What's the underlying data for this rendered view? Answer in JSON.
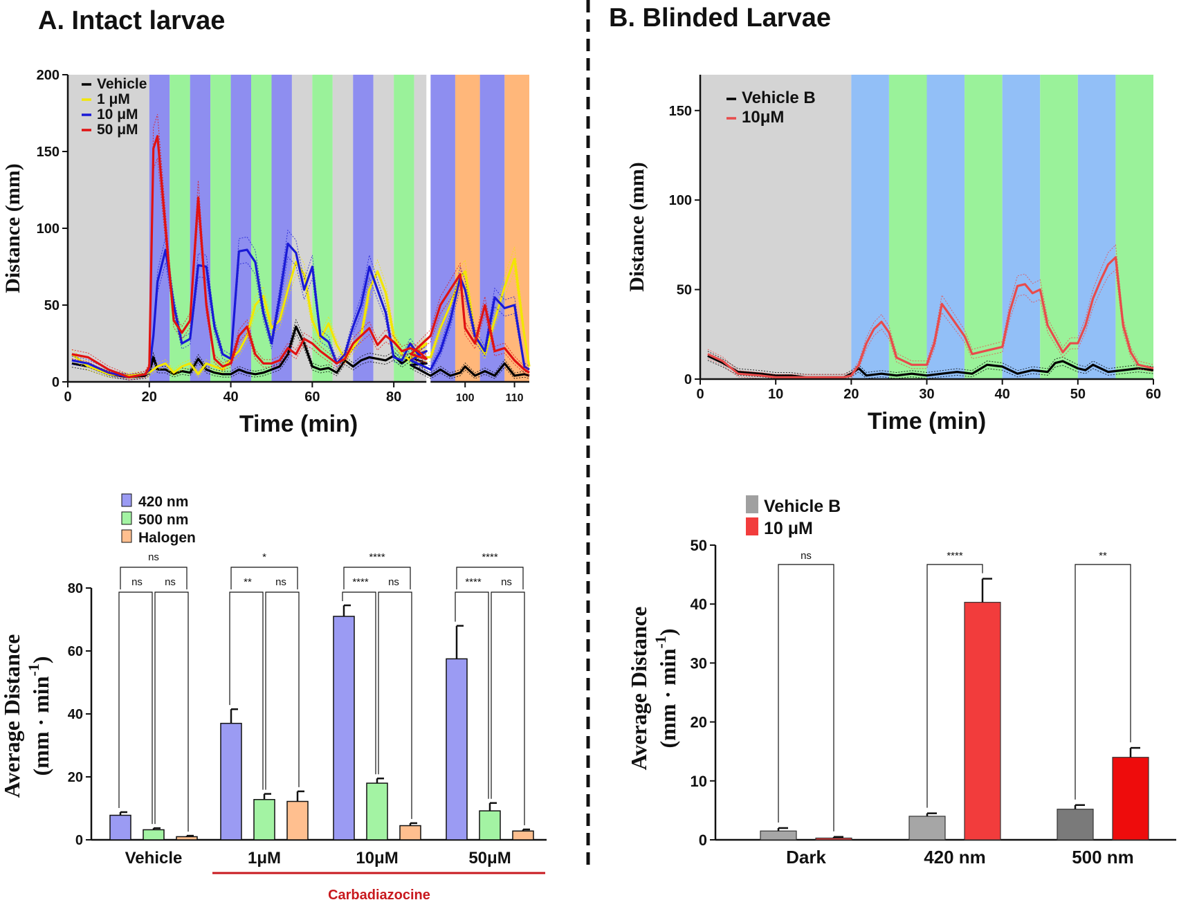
{
  "panel_a_title": "A. Intact larvae",
  "panel_b_title": "B. Blinded Larvae",
  "chart_data": [
    {
      "id": "a-top",
      "type": "line",
      "xlabel": "Time (min)",
      "ylabel": "Distance (mm)",
      "ylim": [
        0,
        200
      ],
      "xlim": [
        0,
        113
      ],
      "x_axis_break_at": 88,
      "y_ticks": [
        0,
        50,
        100,
        150,
        200
      ],
      "x_ticks": [
        0,
        20,
        40,
        60,
        80,
        100,
        110
      ],
      "legend_position": "top-left",
      "bands": [
        {
          "from": 0,
          "to": 20,
          "color": "#d4d4d4"
        },
        {
          "from": 20,
          "to": 25,
          "color": "#8e8ef0"
        },
        {
          "from": 25,
          "to": 30,
          "color": "#9af29a"
        },
        {
          "from": 30,
          "to": 35,
          "color": "#8e8ef0"
        },
        {
          "from": 35,
          "to": 40,
          "color": "#9af29a"
        },
        {
          "from": 40,
          "to": 45,
          "color": "#8e8ef0"
        },
        {
          "from": 45,
          "to": 50,
          "color": "#9af29a"
        },
        {
          "from": 50,
          "to": 55,
          "color": "#8e8ef0"
        },
        {
          "from": 55,
          "to": 60,
          "color": "#d4d4d4"
        },
        {
          "from": 60,
          "to": 65,
          "color": "#9af29a"
        },
        {
          "from": 65,
          "to": 70,
          "color": "#d4d4d4"
        },
        {
          "from": 70,
          "to": 75,
          "color": "#8e8ef0"
        },
        {
          "from": 75,
          "to": 80,
          "color": "#d4d4d4"
        },
        {
          "from": 80,
          "to": 85,
          "color": "#9af29a"
        },
        {
          "from": 85,
          "to": 93,
          "color": "#d4d4d4"
        },
        {
          "from": 93,
          "to": 98,
          "color": "#8e8ef0"
        },
        {
          "from": 98,
          "to": 103,
          "color": "#ffb77a"
        },
        {
          "from": 103,
          "to": 108,
          "color": "#8e8ef0"
        },
        {
          "from": 108,
          "to": 113,
          "color": "#ffb77a"
        }
      ],
      "series": [
        {
          "name": "Vehicle",
          "color": "#000000",
          "x": [
            1,
            5,
            10,
            15,
            19,
            20,
            21,
            22,
            24,
            26,
            28,
            30,
            32,
            34,
            36,
            38,
            40,
            42,
            44,
            46,
            48,
            50,
            52,
            54,
            56,
            58,
            60,
            62,
            64,
            66,
            68,
            70,
            72,
            74,
            76,
            78,
            80,
            82,
            84,
            86,
            88,
            89,
            93,
            95,
            97,
            99,
            100,
            102,
            104,
            106,
            108,
            110,
            112,
            113
          ],
          "y": [
            12,
            10,
            5,
            3,
            4,
            6,
            16,
            8,
            8,
            5,
            7,
            6,
            15,
            8,
            6,
            5,
            5,
            8,
            6,
            5,
            6,
            8,
            10,
            18,
            36,
            25,
            10,
            8,
            9,
            6,
            14,
            10,
            14,
            16,
            15,
            14,
            17,
            12,
            16,
            14,
            12,
            11,
            4,
            8,
            4,
            6,
            10,
            4,
            7,
            4,
            12,
            4,
            5,
            4
          ]
        },
        {
          "name": "1 μM",
          "color": "#f2e600",
          "x": [
            1,
            5,
            10,
            15,
            19,
            20,
            21,
            22,
            24,
            26,
            28,
            30,
            32,
            34,
            36,
            38,
            40,
            42,
            44,
            46,
            48,
            50,
            52,
            54,
            56,
            58,
            60,
            62,
            64,
            66,
            68,
            70,
            72,
            74,
            76,
            78,
            80,
            82,
            84,
            86,
            88,
            89,
            93,
            95,
            97,
            99,
            100,
            102,
            104,
            106,
            108,
            110,
            112,
            113
          ],
          "y": [
            18,
            10,
            5,
            4,
            5,
            6,
            8,
            10,
            12,
            6,
            10,
            12,
            5,
            12,
            10,
            8,
            15,
            20,
            30,
            50,
            56,
            35,
            40,
            60,
            78,
            70,
            40,
            28,
            38,
            24,
            15,
            22,
            30,
            60,
            72,
            58,
            30,
            18,
            14,
            22,
            25,
            16,
            16,
            35,
            50,
            68,
            72,
            30,
            18,
            40,
            62,
            80,
            30,
            10
          ]
        },
        {
          "name": "10 μM",
          "color": "#1a1ad6",
          "x": [
            1,
            5,
            10,
            15,
            19,
            20,
            21,
            22,
            24,
            26,
            28,
            30,
            32,
            34,
            36,
            38,
            40,
            42,
            44,
            46,
            48,
            50,
            52,
            54,
            56,
            58,
            60,
            62,
            64,
            66,
            68,
            70,
            72,
            74,
            76,
            78,
            80,
            82,
            84,
            86,
            88,
            89,
            93,
            95,
            97,
            99,
            100,
            102,
            104,
            106,
            108,
            110,
            112,
            113
          ],
          "y": [
            14,
            12,
            6,
            3,
            5,
            8,
            30,
            65,
            86,
            50,
            25,
            28,
            76,
            75,
            36,
            18,
            15,
            85,
            86,
            78,
            45,
            25,
            55,
            90,
            84,
            60,
            75,
            30,
            26,
            12,
            18,
            36,
            50,
            75,
            60,
            45,
            16,
            14,
            25,
            18,
            20,
            14,
            8,
            20,
            40,
            68,
            60,
            30,
            20,
            55,
            48,
            50,
            10,
            8
          ]
        },
        {
          "name": "50 μM",
          "color": "#e01212",
          "x": [
            1,
            5,
            10,
            15,
            19,
            20,
            21,
            22,
            24,
            26,
            28,
            30,
            32,
            34,
            36,
            38,
            40,
            42,
            44,
            46,
            48,
            50,
            52,
            54,
            56,
            58,
            60,
            62,
            64,
            66,
            68,
            70,
            72,
            74,
            76,
            78,
            80,
            82,
            84,
            86,
            88,
            89,
            93,
            95,
            97,
            99,
            100,
            102,
            104,
            106,
            108,
            110,
            112,
            113
          ],
          "y": [
            18,
            16,
            8,
            3,
            5,
            10,
            152,
            160,
            100,
            40,
            32,
            40,
            120,
            50,
            15,
            10,
            12,
            30,
            36,
            18,
            12,
            12,
            14,
            22,
            18,
            28,
            25,
            20,
            16,
            12,
            15,
            25,
            30,
            35,
            24,
            30,
            26,
            20,
            22,
            20,
            15,
            18,
            30,
            50,
            60,
            70,
            35,
            25,
            50,
            20,
            22,
            14,
            8,
            6
          ]
        }
      ]
    },
    {
      "id": "a-bottom",
      "type": "bar",
      "ylabel": "Average Distance",
      "ylabel_unit": "(mm · min",
      "ylabel_sup": "-1",
      "ylabel_close": ")",
      "ylim": [
        0,
        80
      ],
      "y_ticks": [
        0,
        20,
        40,
        60,
        80
      ],
      "legend_position": "top-left",
      "series": [
        {
          "name": "420 nm",
          "color": "#9b9bf3"
        },
        {
          "name": "500 nm",
          "color": "#a3f3a3"
        },
        {
          "name": "Halogen",
          "color": "#ffbf8f"
        }
      ],
      "groups": [
        {
          "category": "Vehicle",
          "values": [
            7.8,
            3.2,
            1.0
          ],
          "errors": [
            1.0,
            0.5,
            0.3
          ],
          "sig_pair_12": "ns",
          "sig_pair_23": "ns",
          "sig_pair_13": "ns"
        },
        {
          "category": "1μM",
          "values": [
            37,
            12.8,
            12.2
          ],
          "errors": [
            4.5,
            1.8,
            3.2
          ],
          "sig_pair_12": "**",
          "sig_pair_23": "ns",
          "sig_pair_13": "*"
        },
        {
          "category": "10μM",
          "values": [
            71,
            18,
            4.5
          ],
          "errors": [
            3.5,
            1.5,
            0.8
          ],
          "sig_pair_12": "****",
          "sig_pair_23": "ns",
          "sig_pair_13": "****"
        },
        {
          "category": "50μM",
          "values": [
            57.5,
            9.2,
            2.8
          ],
          "errors": [
            10.5,
            2.5,
            0.5
          ],
          "sig_pair_12": "****",
          "sig_pair_23": "ns",
          "sig_pair_13": "****"
        }
      ],
      "group_label": "Carbadiazocine",
      "group_label_color": "#c8191e"
    },
    {
      "id": "b-top",
      "type": "line",
      "xlabel": "Time (min)",
      "ylabel": "Distance (mm)",
      "ylim": [
        0,
        170
      ],
      "xlim": [
        0,
        60
      ],
      "y_ticks": [
        0,
        50,
        100,
        150
      ],
      "x_ticks": [
        0,
        10,
        20,
        30,
        40,
        50,
        60
      ],
      "legend_position": "top-left",
      "bands": [
        {
          "from": 0,
          "to": 20,
          "color": "#d4d4d4"
        },
        {
          "from": 20,
          "to": 25,
          "color": "#92bff7"
        },
        {
          "from": 25,
          "to": 30,
          "color": "#9af29a"
        },
        {
          "from": 30,
          "to": 35,
          "color": "#92bff7"
        },
        {
          "from": 35,
          "to": 40,
          "color": "#9af29a"
        },
        {
          "from": 40,
          "to": 45,
          "color": "#92bff7"
        },
        {
          "from": 45,
          "to": 50,
          "color": "#9af29a"
        },
        {
          "from": 50,
          "to": 55,
          "color": "#92bff7"
        },
        {
          "from": 55,
          "to": 60,
          "color": "#9af29a"
        }
      ],
      "series": [
        {
          "name": "Vehicle B",
          "color": "#000000",
          "x": [
            1,
            3,
            5,
            8,
            10,
            12,
            14,
            16,
            18,
            19,
            20,
            21,
            22,
            24,
            26,
            28,
            30,
            32,
            34,
            36,
            38,
            40,
            42,
            44,
            46,
            47,
            48,
            50,
            51,
            52,
            54,
            56,
            58,
            60
          ],
          "y": [
            13,
            9,
            4,
            3,
            2,
            2,
            1,
            1,
            1,
            1,
            3,
            6,
            2,
            3,
            2,
            3,
            2,
            3,
            4,
            3,
            8,
            7,
            3,
            5,
            4,
            9,
            10,
            6,
            5,
            8,
            4,
            5,
            6,
            5
          ]
        },
        {
          "name": "10μM",
          "color": "#e84b4b",
          "x": [
            1,
            3,
            5,
            8,
            10,
            12,
            14,
            16,
            18,
            19,
            20,
            21,
            22,
            23,
            24,
            25,
            26,
            28,
            30,
            31,
            32,
            33,
            34,
            35,
            36,
            38,
            40,
            41,
            42,
            43,
            44,
            45,
            46,
            48,
            49,
            50,
            51,
            52,
            53,
            54,
            55,
            56,
            57,
            58,
            60
          ],
          "y": [
            14,
            10,
            3,
            2,
            1,
            1,
            1,
            1,
            1,
            1,
            2,
            8,
            20,
            28,
            32,
            26,
            12,
            8,
            8,
            20,
            42,
            36,
            30,
            24,
            14,
            16,
            18,
            38,
            52,
            53,
            48,
            50,
            30,
            15,
            20,
            20,
            30,
            45,
            55,
            64,
            68,
            30,
            15,
            8,
            6
          ]
        }
      ]
    },
    {
      "id": "b-bottom",
      "type": "bar",
      "ylabel": "Average Distance",
      "ylabel_unit": "(mm · min",
      "ylabel_sup": "-1",
      "ylabel_close": ")",
      "ylim": [
        0,
        50
      ],
      "y_ticks": [
        0,
        10,
        20,
        30,
        40,
        50
      ],
      "legend_position": "top-left",
      "series": [
        {
          "name": "Vehicle B",
          "color": "#a0a0a0"
        },
        {
          "name": "10 μM",
          "color": "#f23c3c"
        }
      ],
      "groups": [
        {
          "category": "Dark",
          "values": [
            1.5,
            0.3
          ],
          "errors": [
            0.5,
            0.2
          ],
          "sig": "ns",
          "colors": [
            "#a6a6a6",
            "#f23c3c"
          ]
        },
        {
          "category": "420 nm",
          "values": [
            4.0,
            40.3
          ],
          "errors": [
            0.5,
            4.0
          ],
          "sig": "****",
          "colors": [
            "#a6a6a6",
            "#f23c3c"
          ]
        },
        {
          "category": "500 nm",
          "values": [
            5.2,
            14.0
          ],
          "errors": [
            0.7,
            1.6
          ],
          "sig": "**",
          "colors": [
            "#7a7a7a",
            "#ee0c0c"
          ]
        }
      ]
    }
  ]
}
